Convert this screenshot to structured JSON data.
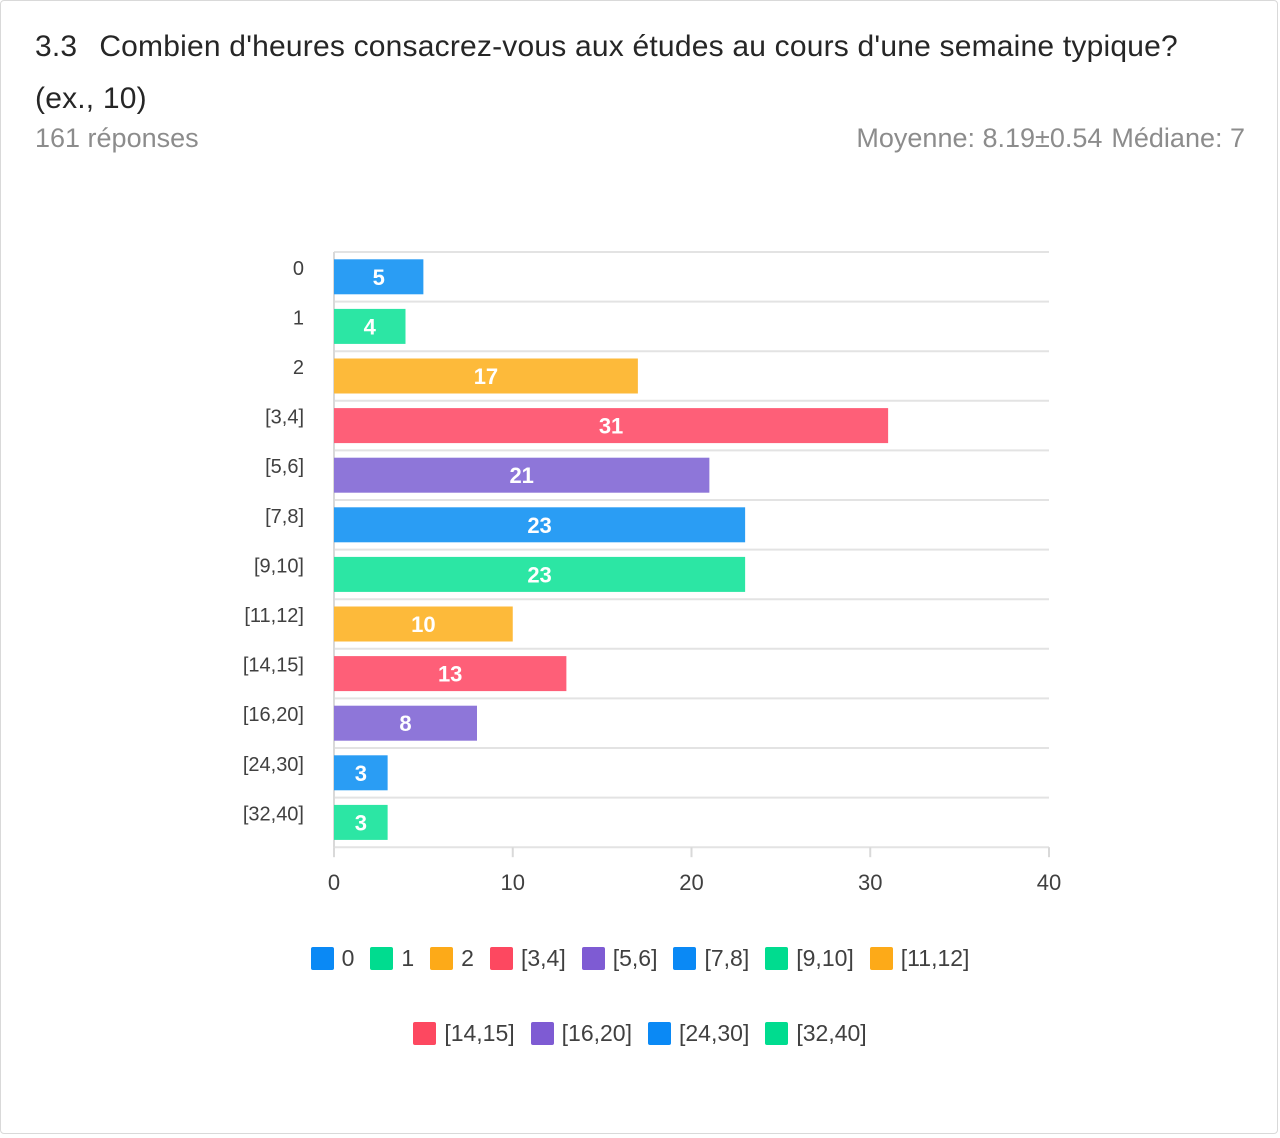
{
  "header": {
    "number": "3.3",
    "question": "Combien d'heures consacrez-vous aux études au cours d'une semaine typique? (ex., 10)",
    "responses": "161 réponses",
    "mean": "Moyenne: 8.19±0.54",
    "median": "Médiane: 7"
  },
  "chart_data": {
    "type": "bar",
    "orientation": "horizontal",
    "categories": [
      "0",
      "1",
      "2",
      "[3,4]",
      "[5,6]",
      "[7,8]",
      "[9,10]",
      "[11,12]",
      "[14,15]",
      "[16,20]",
      "[24,30]",
      "[32,40]"
    ],
    "values": [
      5,
      4,
      17,
      31,
      21,
      23,
      23,
      10,
      13,
      8,
      3,
      3
    ],
    "colors": [
      "#2a9df4",
      "#2ce6a4",
      "#fdba3a",
      "#fe5f78",
      "#8e76d9",
      "#2a9df4",
      "#2ce6a4",
      "#fdba3a",
      "#fe5f78",
      "#8e76d9",
      "#2a9df4",
      "#2ce6a4"
    ],
    "legend_colors": [
      "#0a89f5",
      "#00dc8f",
      "#fdaa18",
      "#fd4860",
      "#7e5bd3",
      "#0a89f5",
      "#00dc8f",
      "#fdaa18",
      "#fd4860",
      "#7e5bd3",
      "#0a89f5",
      "#00dc8f"
    ],
    "xlim": [
      0,
      40
    ],
    "xticks": [
      0,
      10,
      20,
      30,
      40
    ],
    "grid": true,
    "legend_position": "bottom"
  }
}
